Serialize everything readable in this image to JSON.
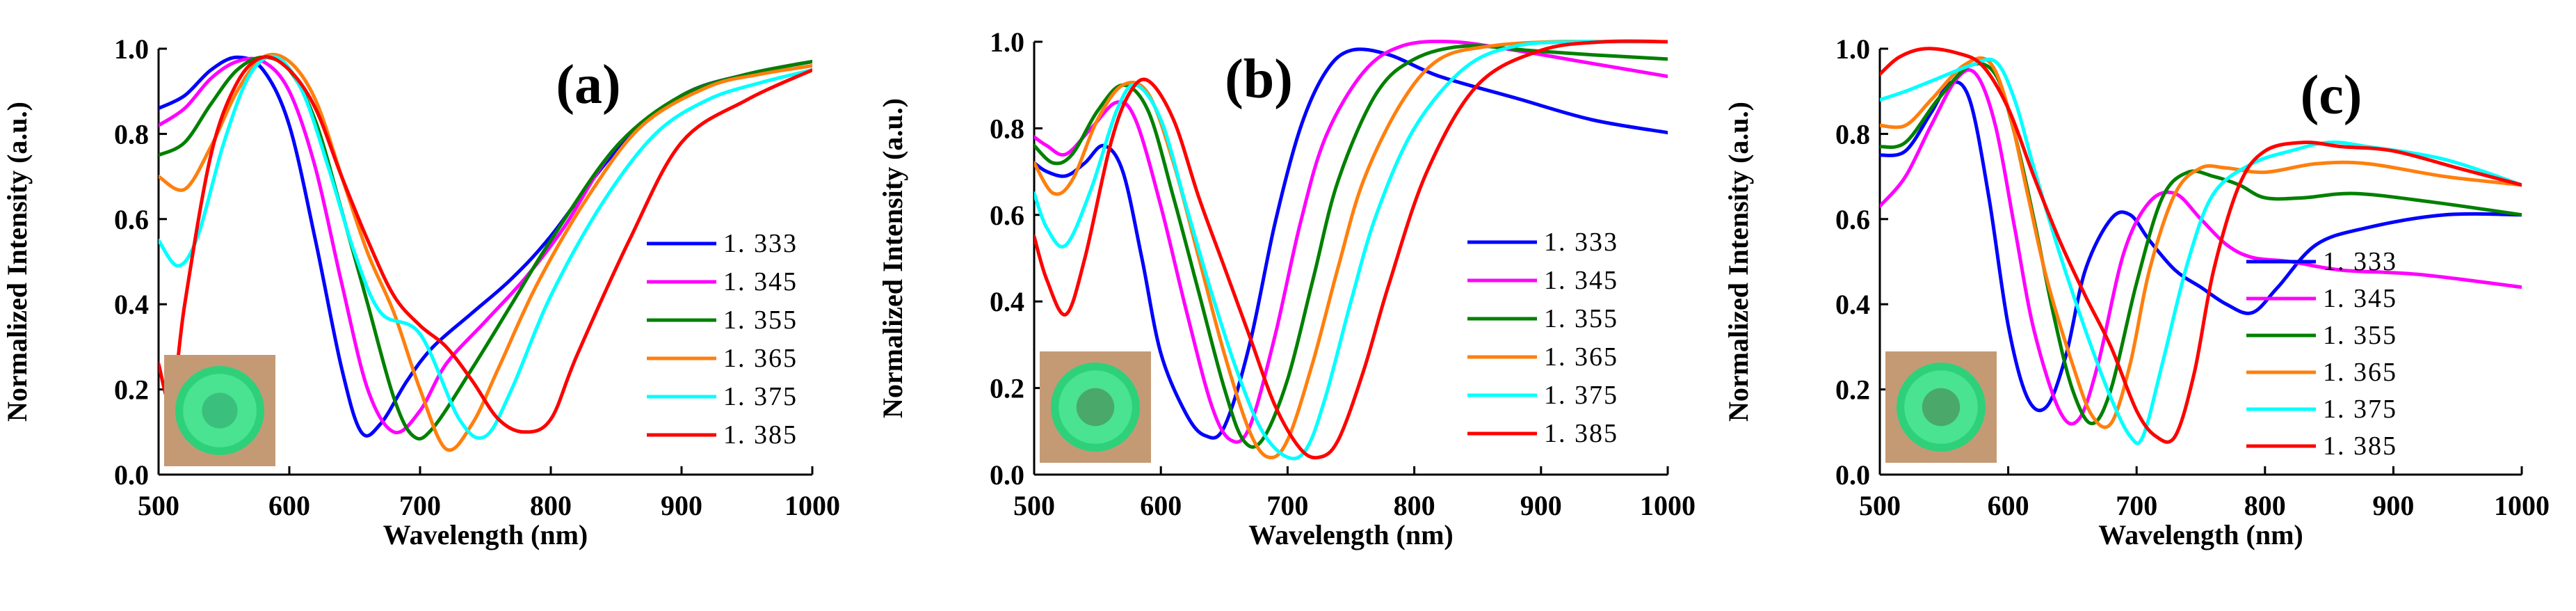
{
  "colors": {
    "1.333": "#0000ff",
    "1.345": "#ff00ff",
    "1.355": "#008000",
    "1.365": "#ff7f0e",
    "1.375": "#00ffff",
    "1.385": "#ff0000"
  },
  "chart_data": [
    {
      "type": "line",
      "title": "(a)",
      "xlabel": "Wavelength (nm)",
      "ylabel": "Normalized Intensity (a.u.)",
      "xlim": [
        500,
        1000
      ],
      "ylim": [
        0,
        1.0
      ],
      "xticks": [
        "500",
        "600",
        "700",
        "800",
        "900",
        "1000"
      ],
      "yticks": [
        "0.0",
        "0.2",
        "0.4",
        "0.6",
        "0.8",
        "1.0"
      ],
      "legend": [
        "1. 333",
        "1. 345",
        "1. 355",
        "1. 365",
        "1. 375",
        "1. 385"
      ],
      "inset_image": "green-fluorescent-ring-photo",
      "series": [
        {
          "name": "1.333",
          "x": [
            500,
            520,
            540,
            560,
            580,
            600,
            620,
            640,
            655,
            670,
            690,
            710,
            740,
            770,
            800,
            850,
            900,
            950,
            1000
          ],
          "y": [
            0.86,
            0.89,
            0.95,
            0.98,
            0.95,
            0.82,
            0.55,
            0.25,
            0.1,
            0.12,
            0.22,
            0.3,
            0.38,
            0.46,
            0.56,
            0.76,
            0.89,
            0.94,
            0.97
          ]
        },
        {
          "name": "1.345",
          "x": [
            500,
            520,
            540,
            560,
            580,
            600,
            620,
            640,
            660,
            680,
            700,
            720,
            750,
            780,
            810,
            850,
            900,
            950,
            1000
          ],
          "y": [
            0.82,
            0.86,
            0.93,
            0.97,
            0.97,
            0.9,
            0.72,
            0.45,
            0.2,
            0.1,
            0.15,
            0.26,
            0.36,
            0.46,
            0.58,
            0.77,
            0.89,
            0.94,
            0.97
          ]
        },
        {
          "name": "1.355",
          "x": [
            500,
            520,
            540,
            560,
            580,
            600,
            620,
            640,
            660,
            680,
            695,
            710,
            740,
            770,
            800,
            850,
            900,
            950,
            1000
          ],
          "y": [
            0.75,
            0.78,
            0.87,
            0.95,
            0.98,
            0.95,
            0.83,
            0.62,
            0.4,
            0.18,
            0.09,
            0.11,
            0.25,
            0.4,
            0.55,
            0.77,
            0.89,
            0.94,
            0.97
          ]
        },
        {
          "name": "1.365",
          "x": [
            500,
            520,
            540,
            560,
            580,
            600,
            620,
            640,
            660,
            680,
            700,
            720,
            740,
            760,
            790,
            830,
            870,
            920,
            960,
            1000
          ],
          "y": [
            0.7,
            0.67,
            0.77,
            0.9,
            0.98,
            0.97,
            0.88,
            0.7,
            0.52,
            0.38,
            0.2,
            0.06,
            0.12,
            0.25,
            0.45,
            0.66,
            0.82,
            0.91,
            0.94,
            0.96
          ]
        },
        {
          "name": "1.375",
          "x": [
            500,
            515,
            530,
            550,
            570,
            590,
            610,
            630,
            650,
            670,
            700,
            730,
            750,
            770,
            800,
            840,
            880,
            920,
            960,
            1000
          ],
          "y": [
            0.55,
            0.49,
            0.56,
            0.78,
            0.94,
            0.98,
            0.9,
            0.72,
            0.52,
            0.38,
            0.33,
            0.13,
            0.09,
            0.2,
            0.42,
            0.64,
            0.8,
            0.88,
            0.92,
            0.95
          ]
        },
        {
          "name": "1.385",
          "x": [
            500,
            510,
            520,
            540,
            560,
            580,
            600,
            620,
            640,
            660,
            680,
            700,
            720,
            740,
            760,
            780,
            800,
            820,
            860,
            900,
            950,
            1000
          ],
          "y": [
            0.26,
            0.17,
            0.4,
            0.75,
            0.92,
            0.98,
            0.95,
            0.86,
            0.7,
            0.55,
            0.42,
            0.35,
            0.3,
            0.22,
            0.13,
            0.1,
            0.13,
            0.28,
            0.55,
            0.78,
            0.88,
            0.95
          ]
        }
      ]
    },
    {
      "type": "line",
      "title": "(b)",
      "xlabel": "Wavelength (nm)",
      "ylabel": "Normalized Intensity (a.u.)",
      "xlim": [
        500,
        1000
      ],
      "ylim": [
        0,
        1.0
      ],
      "xticks": [
        "500",
        "600",
        "700",
        "800",
        "900",
        "1000"
      ],
      "yticks": [
        "0.0",
        "0.2",
        "0.4",
        "0.6",
        "0.8",
        "1.0"
      ],
      "legend": [
        "1. 333",
        "1. 345",
        "1. 355",
        "1. 365",
        "1. 375",
        "1. 385"
      ],
      "inset_image": "green-fluorescent-ring-photo",
      "series": [
        {
          "name": "1.333",
          "x": [
            500,
            510,
            525,
            540,
            555,
            570,
            585,
            600,
            620,
            635,
            650,
            670,
            690,
            710,
            730,
            750,
            780,
            820,
            880,
            940,
            1000
          ],
          "y": [
            0.72,
            0.7,
            0.69,
            0.72,
            0.76,
            0.7,
            0.5,
            0.28,
            0.14,
            0.09,
            0.11,
            0.3,
            0.58,
            0.8,
            0.93,
            0.98,
            0.97,
            0.92,
            0.87,
            0.82,
            0.79
          ]
        },
        {
          "name": "1.345",
          "x": [
            500,
            510,
            525,
            545,
            565,
            580,
            600,
            620,
            640,
            655,
            670,
            690,
            710,
            730,
            760,
            790,
            830,
            880,
            940,
            1000
          ],
          "y": [
            0.78,
            0.76,
            0.74,
            0.8,
            0.86,
            0.82,
            0.62,
            0.38,
            0.16,
            0.08,
            0.11,
            0.32,
            0.58,
            0.78,
            0.93,
            0.99,
            1.0,
            0.98,
            0.95,
            0.92
          ]
        },
        {
          "name": "1.355",
          "x": [
            500,
            515,
            530,
            550,
            570,
            590,
            610,
            630,
            650,
            665,
            680,
            700,
            720,
            740,
            770,
            800,
            840,
            890,
            940,
            1000
          ],
          "y": [
            0.76,
            0.72,
            0.74,
            0.84,
            0.9,
            0.84,
            0.64,
            0.42,
            0.2,
            0.08,
            0.08,
            0.22,
            0.45,
            0.68,
            0.88,
            0.96,
            0.99,
            0.98,
            0.97,
            0.96
          ]
        },
        {
          "name": "1.365",
          "x": [
            500,
            515,
            530,
            550,
            570,
            590,
            610,
            630,
            650,
            670,
            685,
            700,
            720,
            740,
            760,
            790,
            820,
            860,
            910,
            960,
            1000
          ],
          "y": [
            0.72,
            0.65,
            0.68,
            0.82,
            0.9,
            0.88,
            0.72,
            0.5,
            0.28,
            0.1,
            0.04,
            0.08,
            0.26,
            0.48,
            0.68,
            0.86,
            0.96,
            0.99,
            1.0,
            1.0,
            1.0
          ]
        },
        {
          "name": "1.375",
          "x": [
            500,
            510,
            525,
            545,
            565,
            580,
            600,
            620,
            640,
            660,
            680,
            700,
            715,
            730,
            750,
            770,
            800,
            840,
            880,
            930,
            1000
          ],
          "y": [
            0.65,
            0.57,
            0.53,
            0.66,
            0.84,
            0.9,
            0.82,
            0.62,
            0.42,
            0.24,
            0.1,
            0.04,
            0.06,
            0.18,
            0.4,
            0.6,
            0.8,
            0.94,
            0.99,
            1.0,
            1.0
          ]
        },
        {
          "name": "1.385",
          "x": [
            500,
            510,
            525,
            540,
            560,
            575,
            590,
            610,
            630,
            650,
            670,
            690,
            710,
            725,
            740,
            760,
            780,
            810,
            850,
            900,
            950,
            1000
          ],
          "y": [
            0.55,
            0.45,
            0.37,
            0.5,
            0.76,
            0.88,
            0.91,
            0.82,
            0.64,
            0.48,
            0.32,
            0.16,
            0.06,
            0.04,
            0.08,
            0.24,
            0.44,
            0.7,
            0.9,
            0.98,
            1.0,
            1.0
          ]
        }
      ]
    },
    {
      "type": "line",
      "title": "(c)",
      "xlabel": "Wavelength (nm)",
      "ylabel": "Normalized Intensity (a.u.)",
      "xlim": [
        500,
        1000
      ],
      "ylim": [
        0,
        1.0
      ],
      "xticks": [
        "500",
        "600",
        "700",
        "800",
        "900",
        "1000"
      ],
      "yticks": [
        "0.0",
        "0.2",
        "0.4",
        "0.6",
        "0.8",
        "1.0"
      ],
      "legend": [
        "1. 333",
        "1. 345",
        "1. 355",
        "1. 365",
        "1. 375",
        "1. 385"
      ],
      "inset_image": "green-fluorescent-ring-photo",
      "series": [
        {
          "name": "1.333",
          "x": [
            500,
            520,
            540,
            555,
            570,
            585,
            600,
            615,
            630,
            645,
            660,
            680,
            695,
            710,
            730,
            750,
            770,
            790,
            810,
            840,
            880,
            940,
            1000
          ],
          "y": [
            0.75,
            0.76,
            0.85,
            0.92,
            0.88,
            0.65,
            0.35,
            0.18,
            0.16,
            0.28,
            0.48,
            0.6,
            0.61,
            0.55,
            0.48,
            0.44,
            0.4,
            0.38,
            0.44,
            0.54,
            0.58,
            0.61,
            0.61
          ]
        },
        {
          "name": "1.345",
          "x": [
            500,
            520,
            540,
            560,
            575,
            590,
            605,
            620,
            640,
            655,
            670,
            690,
            710,
            730,
            750,
            770,
            790,
            820,
            860,
            920,
            1000
          ],
          "y": [
            0.63,
            0.7,
            0.82,
            0.93,
            0.94,
            0.82,
            0.58,
            0.34,
            0.15,
            0.13,
            0.26,
            0.52,
            0.64,
            0.66,
            0.6,
            0.54,
            0.51,
            0.5,
            0.48,
            0.47,
            0.44
          ]
        },
        {
          "name": "1.355",
          "x": [
            500,
            520,
            545,
            570,
            590,
            605,
            620,
            635,
            650,
            665,
            680,
            700,
            720,
            740,
            760,
            780,
            800,
            830,
            870,
            930,
            1000
          ],
          "y": [
            0.77,
            0.78,
            0.88,
            0.96,
            0.94,
            0.8,
            0.6,
            0.38,
            0.2,
            0.12,
            0.2,
            0.45,
            0.65,
            0.71,
            0.7,
            0.68,
            0.65,
            0.65,
            0.66,
            0.64,
            0.61
          ]
        },
        {
          "name": "1.365",
          "x": [
            500,
            520,
            540,
            565,
            585,
            600,
            615,
            630,
            650,
            665,
            680,
            695,
            710,
            730,
            750,
            770,
            800,
            840,
            880,
            940,
            1000
          ],
          "y": [
            0.82,
            0.82,
            0.88,
            0.96,
            0.97,
            0.86,
            0.66,
            0.46,
            0.26,
            0.14,
            0.12,
            0.26,
            0.48,
            0.66,
            0.72,
            0.72,
            0.71,
            0.73,
            0.73,
            0.7,
            0.68
          ]
        },
        {
          "name": "1.375",
          "x": [
            500,
            520,
            545,
            570,
            590,
            605,
            620,
            640,
            660,
            680,
            695,
            705,
            720,
            740,
            760,
            790,
            820,
            850,
            880,
            940,
            1000
          ],
          "y": [
            0.88,
            0.9,
            0.93,
            0.96,
            0.97,
            0.88,
            0.72,
            0.52,
            0.34,
            0.18,
            0.09,
            0.09,
            0.26,
            0.5,
            0.66,
            0.73,
            0.76,
            0.78,
            0.77,
            0.74,
            0.68
          ]
        },
        {
          "name": "1.385",
          "x": [
            500,
            515,
            535,
            560,
            580,
            600,
            620,
            640,
            660,
            680,
            700,
            715,
            730,
            745,
            760,
            780,
            800,
            830,
            860,
            900,
            950,
            1000
          ],
          "y": [
            0.94,
            0.98,
            1.0,
            0.99,
            0.96,
            0.86,
            0.7,
            0.55,
            0.42,
            0.3,
            0.15,
            0.09,
            0.09,
            0.24,
            0.48,
            0.68,
            0.76,
            0.78,
            0.77,
            0.76,
            0.72,
            0.68
          ]
        }
      ]
    }
  ]
}
